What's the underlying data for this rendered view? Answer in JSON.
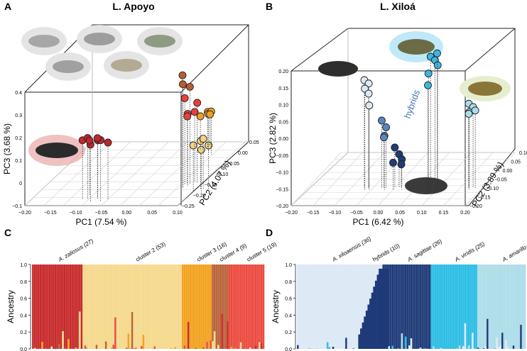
{
  "figure": {
    "panels": [
      {
        "letter": "A",
        "title": "L. Apoyo"
      },
      {
        "letter": "B",
        "title": "L. Xiloá"
      },
      {
        "letter": "C"
      },
      {
        "letter": "D"
      }
    ]
  },
  "chart_data": [
    {
      "panel": "A",
      "type": "scatter",
      "projection": "3d",
      "title": "L. Apoyo",
      "xlabel": "PC1 (7.54 %)",
      "ylabel": "PC2 (4.07 %)",
      "zlabel": "PC3 (3.68 %)",
      "xticks": [
        "−0.20",
        "−0.15",
        "−0.10",
        "−0.05",
        "0.00",
        "0.05",
        "0.10"
      ],
      "yticks": [
        "0.05",
        "0.00",
        "−0.05",
        "−0.10",
        "−0.15",
        "−0.20",
        "−0.25"
      ],
      "zticks": [
        "0.4",
        "0.3",
        "0.2",
        "0.1",
        "0",
        "−0.1"
      ],
      "series": [
        {
          "name": "A. zaliosus",
          "color": "#c0262c",
          "points": [
            [
              -0.1,
              0.02,
              0.16
            ],
            [
              -0.09,
              0.02,
              0.17
            ],
            [
              -0.08,
              0.03,
              0.15
            ],
            [
              -0.07,
              0.02,
              0.16
            ],
            [
              -0.06,
              0.03,
              0.17
            ],
            [
              -0.05,
              0.02,
              0.15
            ],
            [
              -0.095,
              0.0,
              0.14
            ],
            [
              -0.075,
              0.01,
              0.16
            ]
          ]
        },
        {
          "name": "cluster 2",
          "color": "#f2d380",
          "points": [
            [
              0.1,
              -0.02,
              0.1
            ],
            [
              0.11,
              -0.03,
              0.11
            ],
            [
              0.12,
              -0.01,
              0.09
            ],
            [
              0.13,
              -0.02,
              0.1
            ],
            [
              0.115,
              -0.03,
              0.12
            ]
          ]
        },
        {
          "name": "cluster 3",
          "color": "#f0a020",
          "points": [
            [
              0.03,
              -0.21,
              0.05
            ],
            [
              0.04,
              -0.22,
              0.06
            ],
            [
              0.05,
              -0.2,
              0.07
            ],
            [
              0.06,
              -0.19,
              0.09
            ],
            [
              0.04,
              -0.23,
              0.04
            ]
          ]
        },
        {
          "name": "cluster 4",
          "color": "#b85c33",
          "points": [
            [
              0.07,
              -0.04,
              0.39
            ],
            [
              0.075,
              -0.03,
              0.36
            ],
            [
              0.08,
              -0.05,
              0.33
            ]
          ]
        },
        {
          "name": "cluster 5",
          "color": "#e8413a",
          "points": [
            [
              0.07,
              -0.05,
              0.28
            ],
            [
              0.08,
              -0.04,
              0.22
            ],
            [
              0.075,
              -0.05,
              0.2
            ],
            [
              0.085,
              -0.06,
              0.21
            ],
            [
              0.09,
              -0.06,
              0.25
            ]
          ]
        }
      ]
    },
    {
      "panel": "B",
      "type": "scatter",
      "projection": "3d",
      "title": "L. Xiloá",
      "xlabel": "PC1 (6.42 %)",
      "ylabel": "PC2 (3.89 %)",
      "zlabel": "PC3 (2.82 %)",
      "xticks": [
        "−0.20",
        "−0.15",
        "−0.10",
        "−0.05",
        "0.00",
        "0.05",
        "0.10",
        "0.15",
        "0.20"
      ],
      "yticks": [
        "0.10",
        "0.05",
        "0.00",
        "−0.05",
        "−0.10",
        "−0.15",
        "−0.20"
      ],
      "zticks": [
        "0.20",
        "0.15",
        "0.10",
        "0.05",
        "0.00",
        "−0.05",
        "−0.10",
        "−0.15",
        "−0.20"
      ],
      "annotation": "hybrids",
      "series": [
        {
          "name": "A. xiloaensis",
          "color": "#dde9f4",
          "points": [
            [
              -0.07,
              0.0,
              0.12
            ],
            [
              -0.06,
              0.0,
              0.11
            ],
            [
              -0.065,
              0.01,
              0.1
            ],
            [
              -0.06,
              0.0,
              0.08
            ],
            [
              -0.055,
              0.01,
              0.05
            ]
          ]
        },
        {
          "name": "hybrids",
          "color": "#5a86bf",
          "points": [
            [
              -0.03,
              0.0,
              0.0
            ],
            [
              -0.02,
              0.0,
              -0.02
            ],
            [
              -0.02,
              0.01,
              -0.04
            ],
            [
              -0.025,
              0.0,
              -0.05
            ]
          ]
        },
        {
          "name": "A. sagittae",
          "color": "#1f3d78",
          "points": [
            [
              0.0,
              0.0,
              -0.08
            ],
            [
              0.01,
              0.0,
              -0.1
            ],
            [
              0.02,
              0.01,
              -0.11
            ],
            [
              0.015,
              0.0,
              -0.13
            ],
            [
              0.0,
              0.01,
              -0.12
            ]
          ]
        },
        {
          "name": "A. viridis",
          "color": "#3fb5e0",
          "points": [
            [
              0.09,
              0.02,
              0.2
            ],
            [
              0.1,
              0.02,
              0.19
            ],
            [
              0.11,
              0.03,
              0.18
            ],
            [
              0.105,
              0.02,
              0.21
            ],
            [
              0.085,
              0.02,
              0.15
            ],
            [
              0.08,
              0.01,
              0.11
            ]
          ]
        },
        {
          "name": "A. amarillo",
          "color": "#a9dde9",
          "points": [
            [
              0.17,
              0.0,
              0.05
            ],
            [
              0.18,
              0.0,
              0.04
            ],
            [
              0.175,
              0.01,
              0.03
            ],
            [
              0.185,
              0.0,
              0.03
            ],
            [
              0.17,
              0.0,
              0.02
            ]
          ]
        }
      ]
    },
    {
      "panel": "C",
      "type": "bar",
      "stacked": true,
      "ylabel": "Ancestry",
      "yticks": [
        "1.0",
        "0.8",
        "0.6",
        "0.4",
        "0.2",
        "0.0"
      ],
      "ylim": [
        0,
        1
      ],
      "groups": [
        {
          "label": "A. zaliosus (27)",
          "n": 27,
          "color": "#c72a2c"
        },
        {
          "label": "cluster 2 (53)",
          "n": 53,
          "color": "#f5d98c"
        },
        {
          "label": "cluster 3 (16)",
          "n": 16,
          "color": "#f2a21f"
        },
        {
          "label": "cluster 4 (9)",
          "n": 9,
          "color": "#b9643a"
        },
        {
          "label": "cluster 5 (19)",
          "n": 19,
          "color": "#ec4a3f"
        }
      ]
    },
    {
      "panel": "D",
      "type": "bar",
      "stacked": true,
      "ylabel": "Ancestry",
      "yticks": [
        "1.0",
        "0.8",
        "0.6",
        "0.4",
        "0.2",
        "0.0"
      ],
      "ylim": [
        0,
        1
      ],
      "groups": [
        {
          "label": "A. xiloaensis (36)",
          "n": 36,
          "color": "#dbe8f5"
        },
        {
          "label": "hybrids (10)",
          "n": 10,
          "color": "#dbe8f5"
        },
        {
          "label": "A. sagittae (26)",
          "n": 26,
          "color": "#1e3a78"
        },
        {
          "label": "A. viridis (25)",
          "n": 25,
          "color": "#2bbde5"
        },
        {
          "label": "A. amarillo (26)",
          "n": 26,
          "color": "#acdde8"
        }
      ]
    }
  ]
}
